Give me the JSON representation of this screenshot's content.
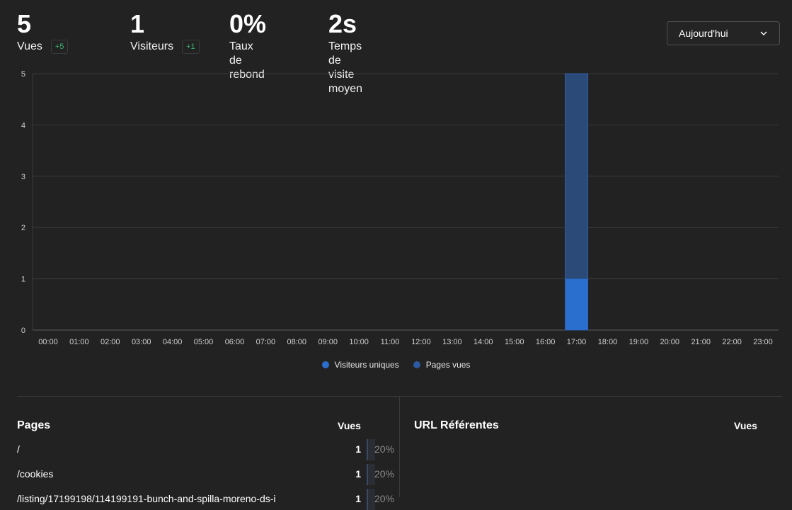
{
  "stats": [
    {
      "value": "5",
      "label": "Vues",
      "delta": "+5"
    },
    {
      "value": "1",
      "label": "Visiteurs",
      "delta": "+1"
    },
    {
      "value": "0%",
      "label": "Taux de rebond"
    },
    {
      "value": "2s",
      "label": "Temps de visite moyen"
    }
  ],
  "range_selector": {
    "selected": "Aujourd'hui",
    "icon": "chevron-down-icon"
  },
  "colors": {
    "unique_visitors": "#2b6fce",
    "page_views": "#2c4a78",
    "delta_positive": "#3cb371"
  },
  "chart_data": {
    "type": "bar",
    "categories": [
      "00:00",
      "01:00",
      "02:00",
      "03:00",
      "04:00",
      "05:00",
      "06:00",
      "07:00",
      "08:00",
      "09:00",
      "10:00",
      "11:00",
      "12:00",
      "13:00",
      "14:00",
      "15:00",
      "16:00",
      "17:00",
      "18:00",
      "19:00",
      "20:00",
      "21:00",
      "22:00",
      "23:00"
    ],
    "series": [
      {
        "name": "Visiteurs uniques",
        "values": [
          0,
          0,
          0,
          0,
          0,
          0,
          0,
          0,
          0,
          0,
          0,
          0,
          0,
          0,
          0,
          0,
          0,
          1,
          0,
          0,
          0,
          0,
          0,
          0
        ]
      },
      {
        "name": "Pages vues",
        "values": [
          0,
          0,
          0,
          0,
          0,
          0,
          0,
          0,
          0,
          0,
          0,
          0,
          0,
          0,
          0,
          0,
          0,
          5,
          0,
          0,
          0,
          0,
          0,
          0
        ]
      }
    ],
    "yticks": [
      "0",
      "1",
      "2",
      "3",
      "4",
      "5"
    ],
    "ylim": [
      0,
      5
    ],
    "grid": true,
    "legend_position": "bottom"
  },
  "pages": {
    "title": "Pages",
    "column": "Vues",
    "rows": [
      {
        "label": "/",
        "count": "1",
        "pct": "20%",
        "share": 0.2
      },
      {
        "label": "/cookies",
        "count": "1",
        "pct": "20%",
        "share": 0.2
      },
      {
        "label": "/listing/17199198/114199191-bunch-and-spilla-moreno-ds-i",
        "count": "1",
        "pct": "20%",
        "share": 0.2
      }
    ]
  },
  "referrers": {
    "title": "URL Référentes",
    "column": "Vues"
  }
}
